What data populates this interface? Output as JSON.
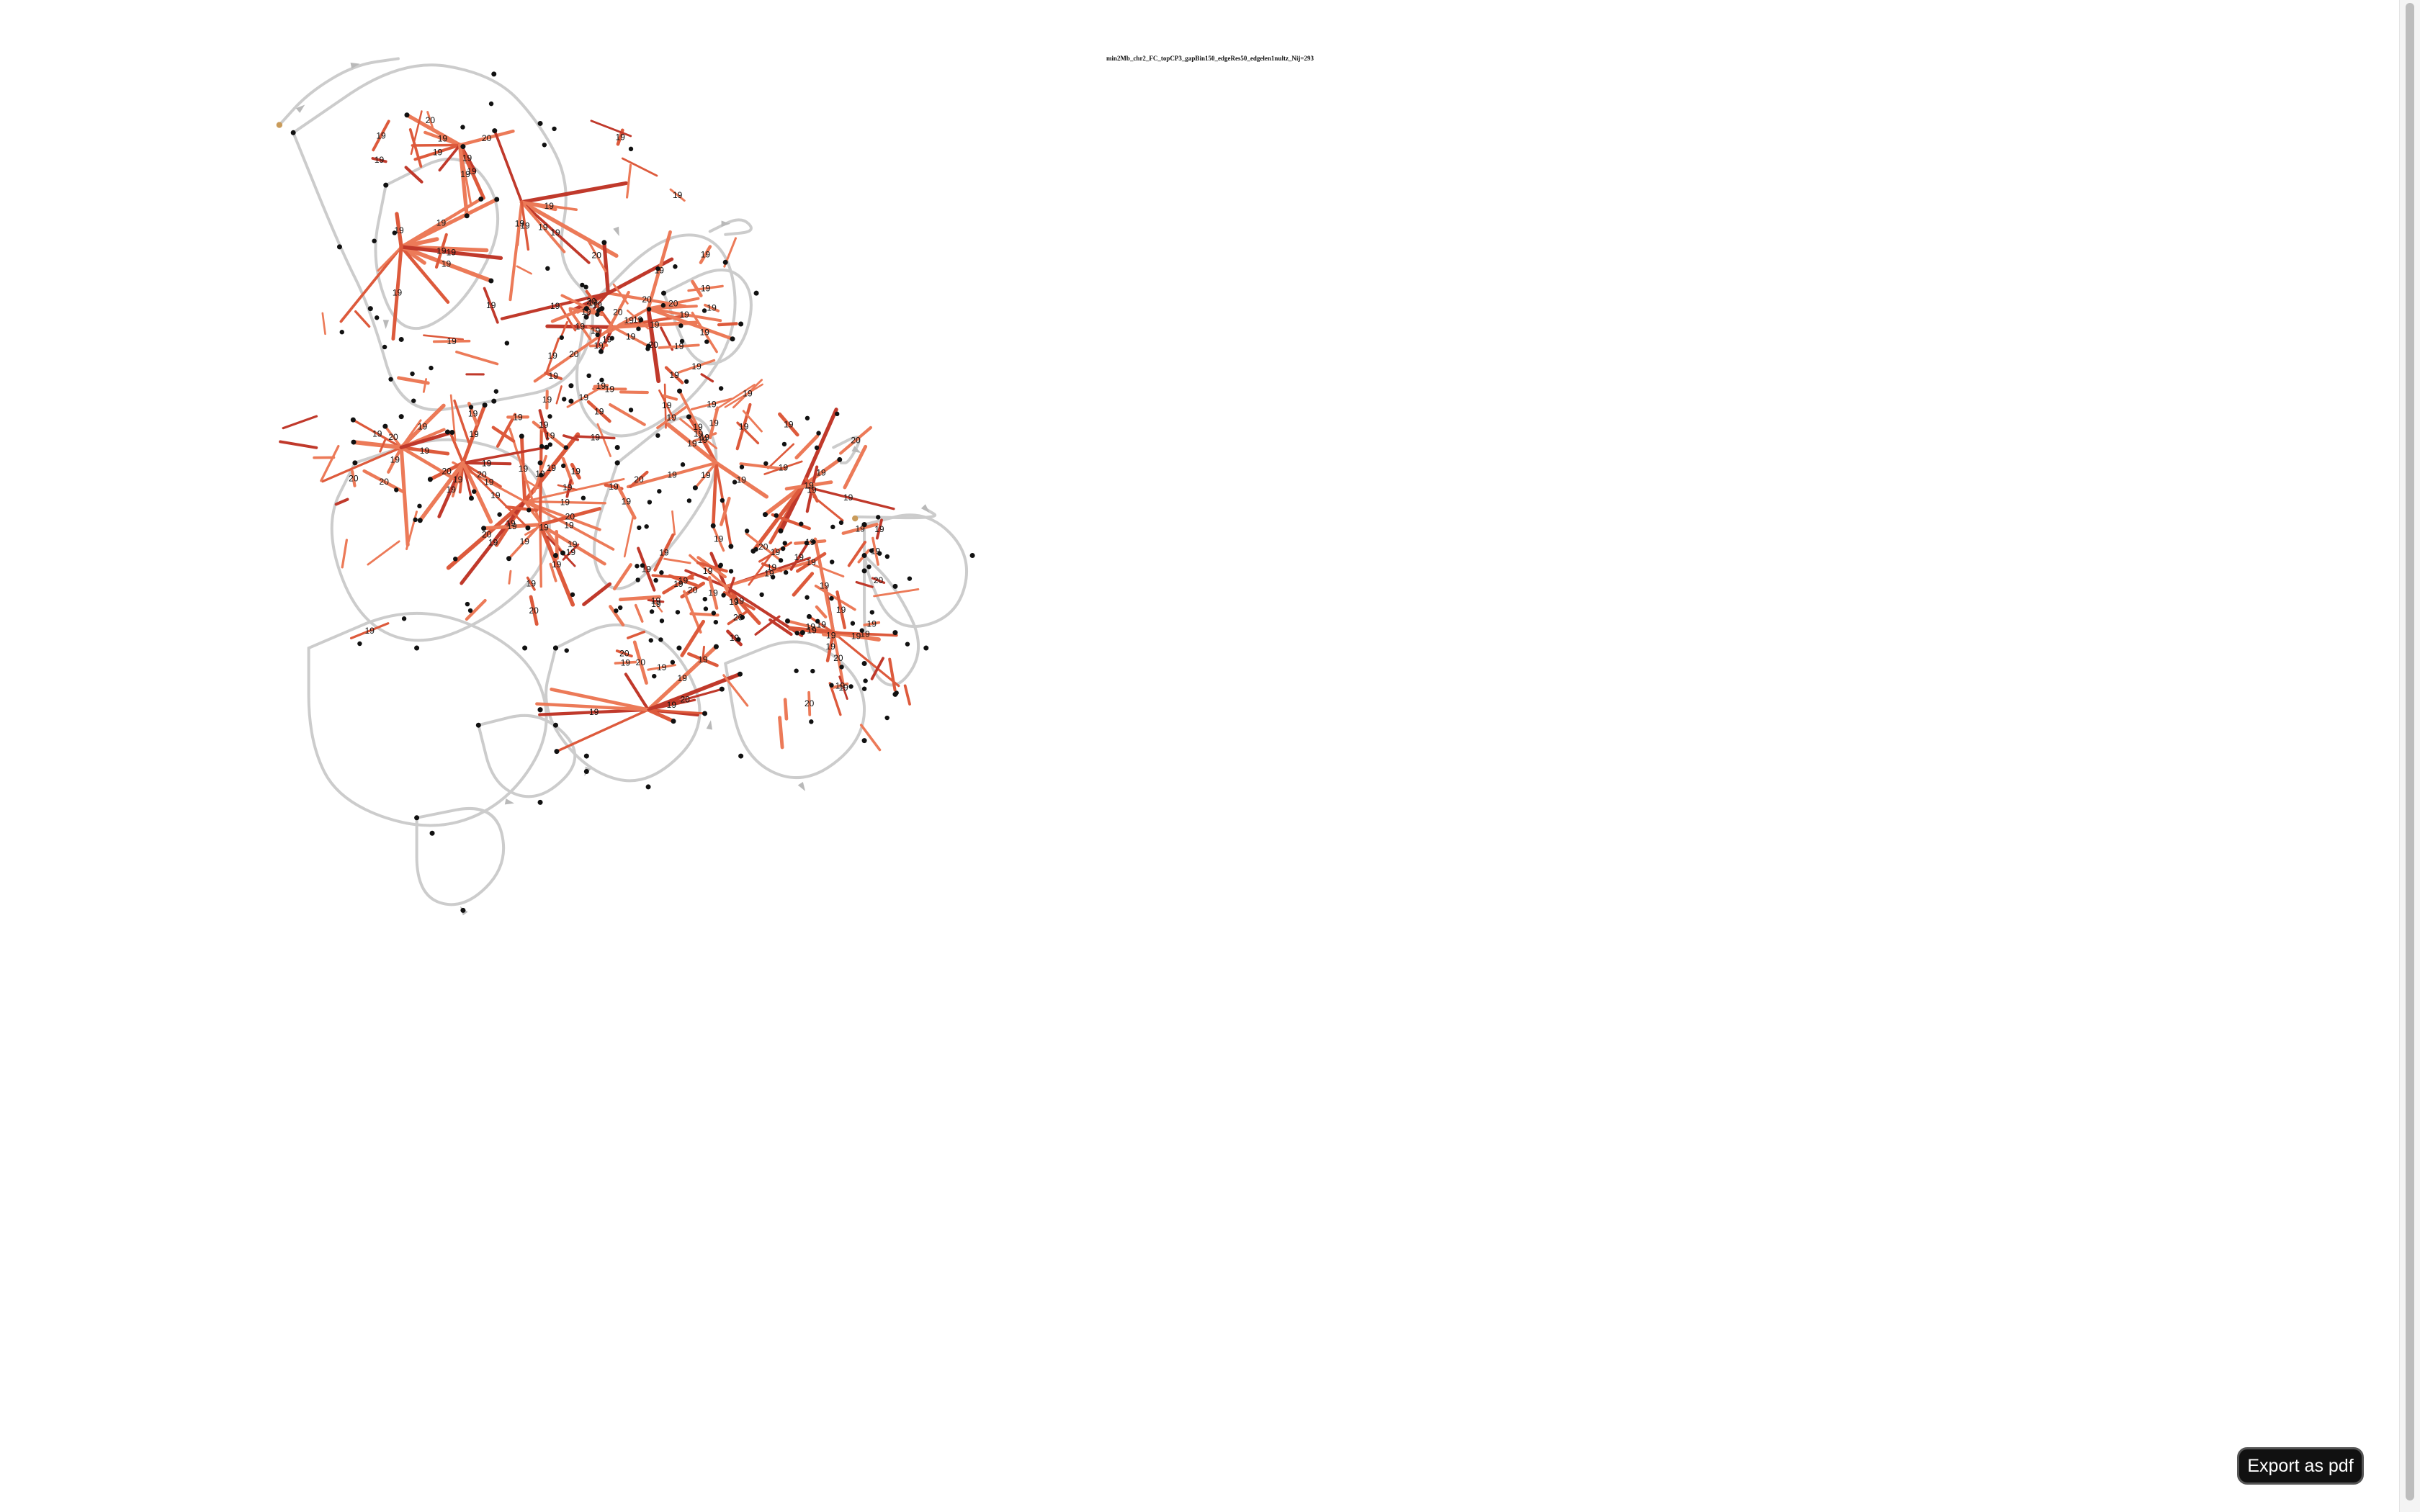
{
  "graph": {
    "title": "min2Mb_chr2_FC_topCP3_gapBin150_edgeRes50_edgelen1nultz_Nij=293",
    "palette": {
      "background": "#ffffff",
      "edge_gray": "#cccccc",
      "edge_arrow": "#b9b9b9",
      "heat_light": "#ec7a58",
      "heat_mid": "#dd5a3c",
      "heat_dark": "#c0392b",
      "node_black": "#111111",
      "node_endpoint": "#c99b5a"
    },
    "edge_labels": [
      "19",
      "20"
    ]
  },
  "export": {
    "label": "Export as pdf"
  }
}
